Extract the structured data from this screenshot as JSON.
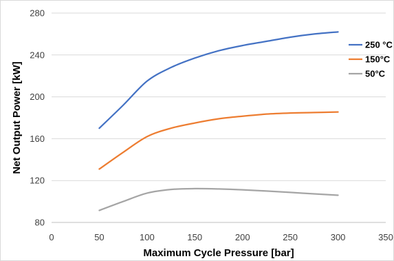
{
  "chart_data": {
    "type": "line",
    "xlabel": "Maximum Cycle Pressure [bar]",
    "ylabel": "Net Output Power [kW]",
    "xlim": [
      0,
      350
    ],
    "ylim": [
      80,
      280
    ],
    "x_ticks": [
      "0",
      "50",
      "100",
      "150",
      "200",
      "250",
      "300",
      "350"
    ],
    "y_ticks": [
      "80",
      "120",
      "160",
      "200",
      "240",
      "280"
    ],
    "grid": "horizontal",
    "legend_position": "right",
    "x": [
      50,
      75,
      100,
      125,
      150,
      175,
      200,
      225,
      250,
      275,
      300
    ],
    "series": [
      {
        "name": "250 °C",
        "color": "#4472C4",
        "values": [
          170,
          192,
          215,
          228,
          237,
          244,
          249,
          253,
          257,
          260,
          262
        ]
      },
      {
        "name": "150°C",
        "color": "#ED7D31",
        "values": [
          131,
          147,
          162,
          170,
          175,
          179,
          181.5,
          183.5,
          184.5,
          185,
          185.5
        ]
      },
      {
        "name": "50°C",
        "color": "#A5A5A5",
        "values": [
          91.5,
          100,
          108,
          111.5,
          112.3,
          112,
          111.2,
          110,
          108.7,
          107.3,
          106
        ]
      }
    ]
  }
}
